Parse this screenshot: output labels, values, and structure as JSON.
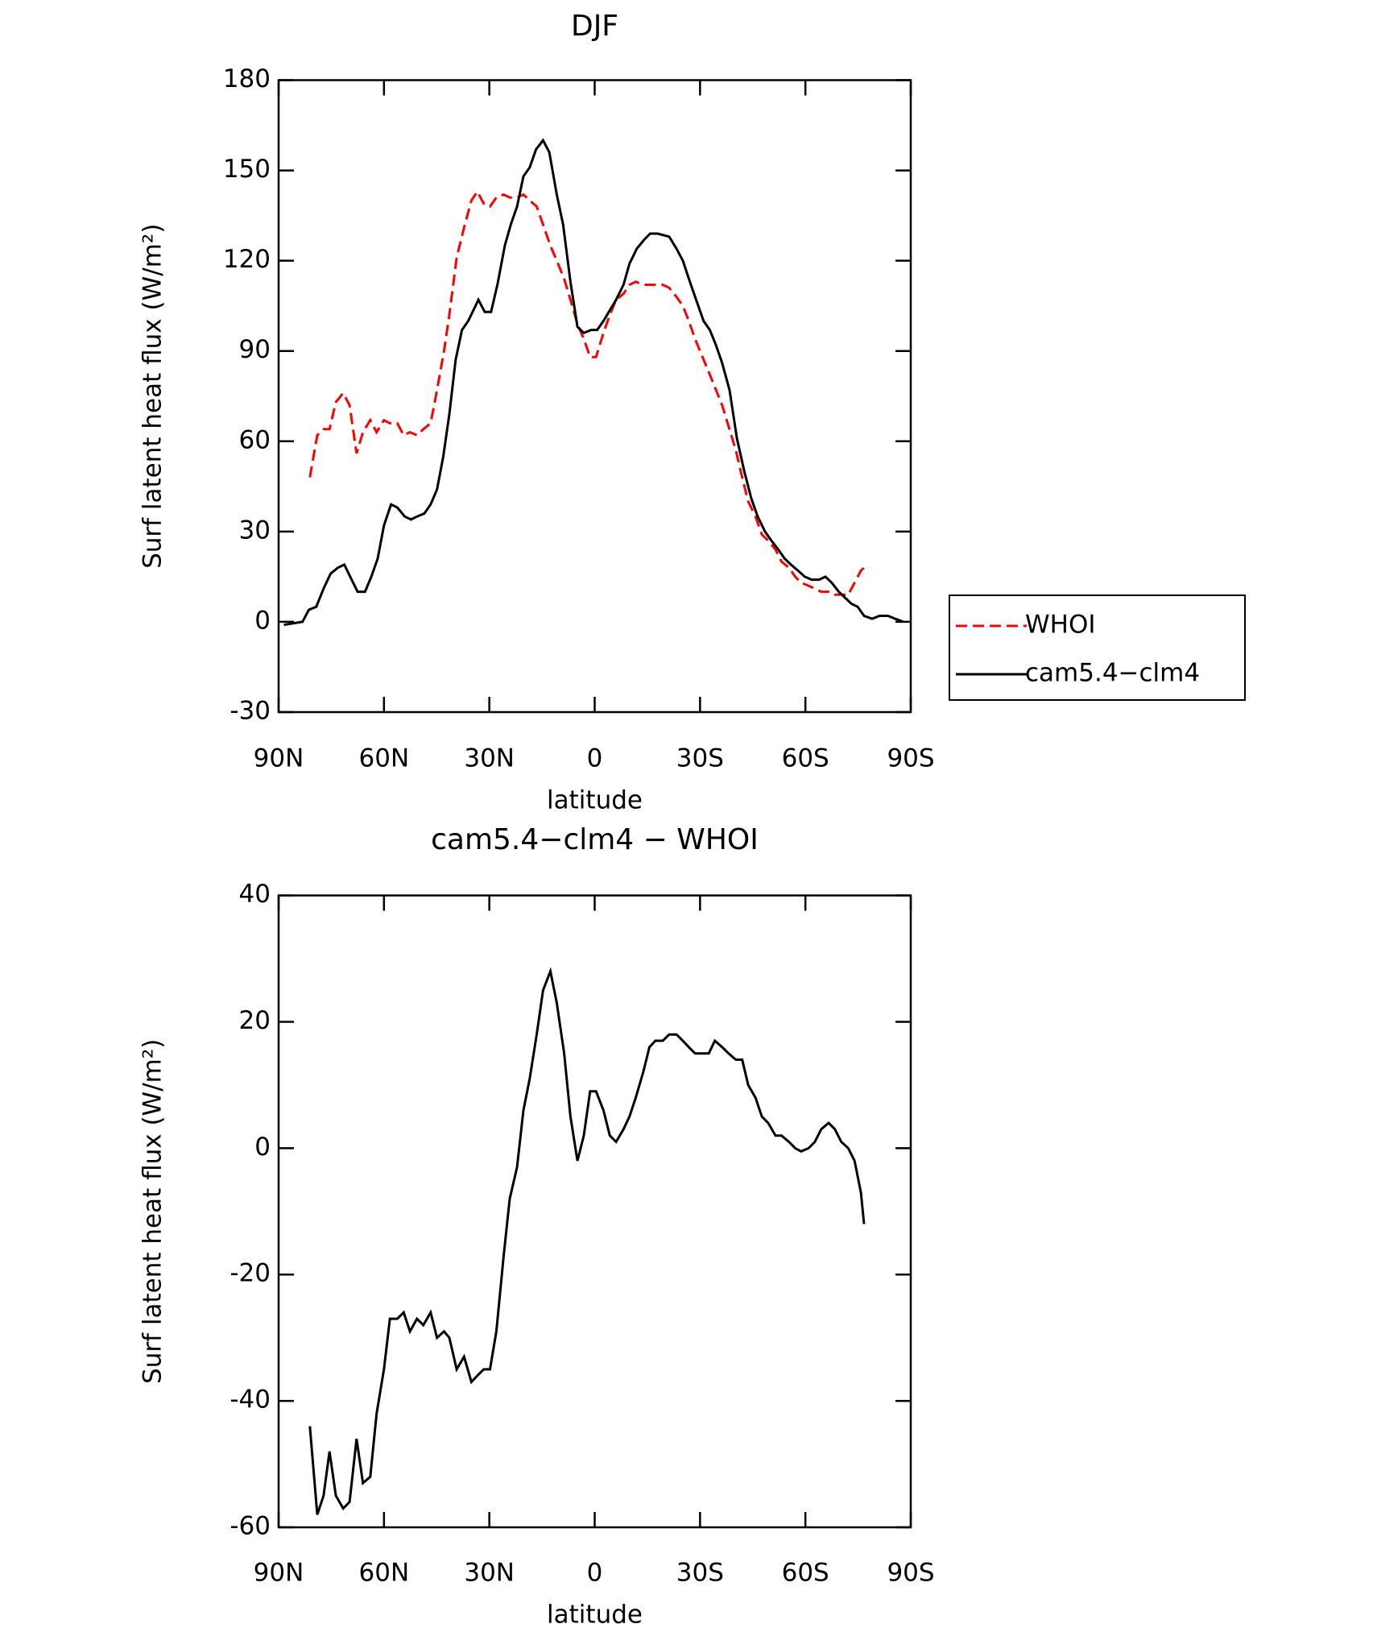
{
  "chart_data": [
    {
      "type": "line",
      "title": "DJF",
      "xlabel": "latitude",
      "ylabel": "Surf latent heat flux (W/m²)",
      "xlim": [
        90,
        -90
      ],
      "xticks": [
        {
          "value": 90,
          "label": "90N"
        },
        {
          "value": 60,
          "label": "60N"
        },
        {
          "value": 30,
          "label": "30N"
        },
        0,
        {
          "value": -30,
          "label": "30S"
        },
        {
          "value": -60,
          "label": "60S"
        },
        {
          "value": -90,
          "label": "90S"
        }
      ],
      "ylim": [
        -30,
        180
      ],
      "yticks": [
        -30,
        0,
        30,
        60,
        90,
        120,
        150,
        180
      ],
      "legend": "right",
      "series": [
        {
          "name": "WHOI",
          "color": "#ff0000",
          "style": "dashed",
          "x": [
            81.1,
            79.0,
            77.2,
            75.5,
            73.7,
            71.6,
            69.8,
            67.8,
            66.0,
            63.9,
            62.1,
            60.0,
            58.3,
            56.2,
            54.4,
            52.6,
            50.6,
            48.8,
            46.7,
            44.9,
            42.9,
            41.4,
            39.3,
            37.2,
            35.1,
            33.4,
            31.6,
            29.8,
            28.0,
            25.9,
            24.2,
            22.1,
            20.3,
            18.5,
            16.5,
            14.7,
            12.6,
            10.8,
            8.7,
            6.9,
            4.9,
            3.1,
            1.3,
            -0.4,
            -2.5,
            -4.3,
            -6.1,
            -8.2,
            -9.9,
            -11.7,
            -13.8,
            -15.6,
            -17.3,
            -19.4,
            -21.2,
            -23.3,
            -25.1,
            -26.8,
            -28.6,
            -30.7,
            -32.5,
            -34.2,
            -36.3,
            -38.1,
            -40.2,
            -42.0,
            -43.7,
            -45.8,
            -47.6,
            -49.4,
            -51.5,
            -53.2,
            -55.3,
            -57.1,
            -58.8,
            -60.9,
            -62.7,
            -64.5,
            -66.6,
            -68.4,
            -70.2,
            -72.2,
            -74.0,
            -75.8,
            -76.7
          ],
          "values": [
            48,
            62,
            64,
            64,
            73,
            76,
            72,
            56,
            63,
            67,
            63,
            67,
            66,
            66,
            62,
            63,
            62,
            64,
            66,
            77,
            90,
            102,
            121,
            131,
            140,
            143,
            139,
            138,
            141,
            142,
            141,
            141,
            142,
            140,
            138,
            132,
            125,
            120,
            114,
            107,
            99,
            94,
            88,
            88,
            96,
            102,
            107,
            109,
            112,
            113,
            112,
            112,
            112,
            112,
            111,
            108,
            105,
            100,
            94,
            88,
            83,
            78,
            72,
            65,
            57,
            48,
            40,
            35,
            29,
            27,
            24,
            20,
            18,
            15,
            13,
            12,
            11,
            10,
            10,
            9,
            9,
            9,
            13,
            17,
            18
          ]
        },
        {
          "name": "cam5.4−clm4",
          "color": "#000000",
          "style": "solid",
          "x": [
            88.5,
            83.2,
            81.4,
            79.3,
            77.2,
            75.2,
            73.1,
            71.3,
            69.2,
            67.5,
            65.4,
            63.6,
            61.8,
            60.0,
            58.0,
            56.2,
            54.1,
            52.3,
            50.6,
            48.5,
            46.7,
            44.9,
            43.1,
            41.4,
            39.6,
            37.8,
            36.0,
            33.1,
            31.3,
            29.5,
            27.7,
            25.6,
            23.9,
            22.1,
            20.3,
            18.5,
            16.7,
            14.7,
            12.9,
            10.8,
            9.0,
            6.9,
            4.9,
            3.1,
            1.0,
            -0.7,
            -2.5,
            -6.1,
            -8.2,
            -9.9,
            -12.0,
            -14.1,
            -15.8,
            -17.9,
            -21.2,
            -23.3,
            -25.1,
            -27.1,
            -29.2,
            -31.0,
            -32.8,
            -34.5,
            -36.3,
            -38.4,
            -40.5,
            -42.6,
            -44.6,
            -46.4,
            -48.5,
            -50.3,
            -52.3,
            -54.1,
            -55.9,
            -57.9,
            -59.8,
            -61.8,
            -63.9,
            -65.7,
            -67.5,
            -69.5,
            -71.3,
            -73.1,
            -74.9,
            -76.7,
            -79.0,
            -81.1,
            -83.5,
            -85.6,
            -87.9
          ],
          "values": [
            -1,
            0,
            4,
            5,
            11,
            16,
            18,
            19,
            14,
            10,
            10,
            15,
            21,
            32,
            39,
            38,
            35,
            34,
            35,
            36,
            39,
            44,
            55,
            69,
            87,
            97,
            100,
            107,
            103,
            103,
            112,
            125,
            132,
            138,
            148,
            151,
            157,
            160,
            156,
            142,
            132,
            113,
            98,
            96,
            97,
            97,
            100,
            107,
            112,
            119,
            124,
            127,
            129,
            129,
            128,
            124,
            120,
            113,
            106,
            100,
            97,
            92,
            86,
            77,
            61,
            50,
            41,
            35,
            30,
            27,
            24,
            21,
            19,
            17,
            15,
            14,
            14,
            15,
            13,
            10,
            8,
            6,
            5,
            2,
            1,
            2,
            2,
            1,
            0
          ]
        }
      ]
    },
    {
      "type": "line",
      "title": "cam5.4−clm4 − WHOI",
      "xlabel": "latitude",
      "ylabel": "Surf latent heat flux (W/m²)",
      "xlim": [
        90,
        -90
      ],
      "xticks": [
        {
          "value": 90,
          "label": "90N"
        },
        {
          "value": 60,
          "label": "60N"
        },
        {
          "value": 30,
          "label": "30N"
        },
        0,
        {
          "value": -30,
          "label": "30S"
        },
        {
          "value": -60,
          "label": "60S"
        },
        {
          "value": -90,
          "label": "90S"
        }
      ],
      "ylim": [
        -60,
        40
      ],
      "yticks": [
        -60,
        -40,
        -20,
        0,
        20,
        40
      ],
      "color": "#000000",
      "x": [
        81.1,
        79.0,
        77.2,
        75.5,
        73.7,
        71.6,
        69.8,
        67.8,
        66.0,
        63.9,
        62.1,
        60.0,
        58.3,
        56.2,
        54.4,
        52.6,
        50.6,
        48.8,
        46.7,
        44.9,
        42.9,
        41.4,
        39.3,
        37.2,
        35.1,
        33.4,
        31.6,
        29.8,
        28.0,
        25.9,
        24.2,
        22.1,
        20.3,
        18.5,
        16.5,
        14.7,
        12.6,
        10.8,
        8.7,
        6.9,
        4.9,
        3.1,
        1.3,
        -0.4,
        -2.5,
        -4.3,
        -6.1,
        -8.2,
        -9.9,
        -11.7,
        -13.8,
        -15.6,
        -17.3,
        -19.4,
        -21.2,
        -23.3,
        -25.1,
        -26.8,
        -28.6,
        -30.7,
        -32.5,
        -34.2,
        -36.3,
        -38.1,
        -40.2,
        -42.0,
        -43.7,
        -45.8,
        -47.6,
        -49.4,
        -51.5,
        -53.2,
        -55.3,
        -57.1,
        -58.8,
        -60.9,
        -62.7,
        -64.5,
        -66.6,
        -68.4,
        -70.2,
        -72.2,
        -74.0,
        -75.8,
        -76.7
      ],
      "values": [
        -44,
        -58,
        -55,
        -48,
        -55,
        -57,
        -56,
        -46,
        -53,
        -52,
        -42,
        -35,
        -27,
        -27,
        -26,
        -29,
        -27,
        -28,
        -26,
        -30,
        -29,
        -30,
        -35,
        -33,
        -37,
        -36,
        -35,
        -35,
        -29,
        -17,
        -8,
        -3,
        6,
        11,
        18,
        25,
        28,
        23,
        15,
        5,
        -2,
        2,
        9,
        9,
        6,
        2,
        1,
        3,
        5,
        8,
        12,
        16,
        17,
        17,
        18,
        18,
        17,
        16,
        15,
        15,
        15,
        17,
        16,
        15,
        14,
        14,
        10,
        8,
        5,
        4,
        2,
        2,
        1,
        0,
        -0.5,
        0,
        1,
        3,
        4,
        3,
        1,
        0,
        -2,
        -7,
        -12
      ]
    }
  ]
}
